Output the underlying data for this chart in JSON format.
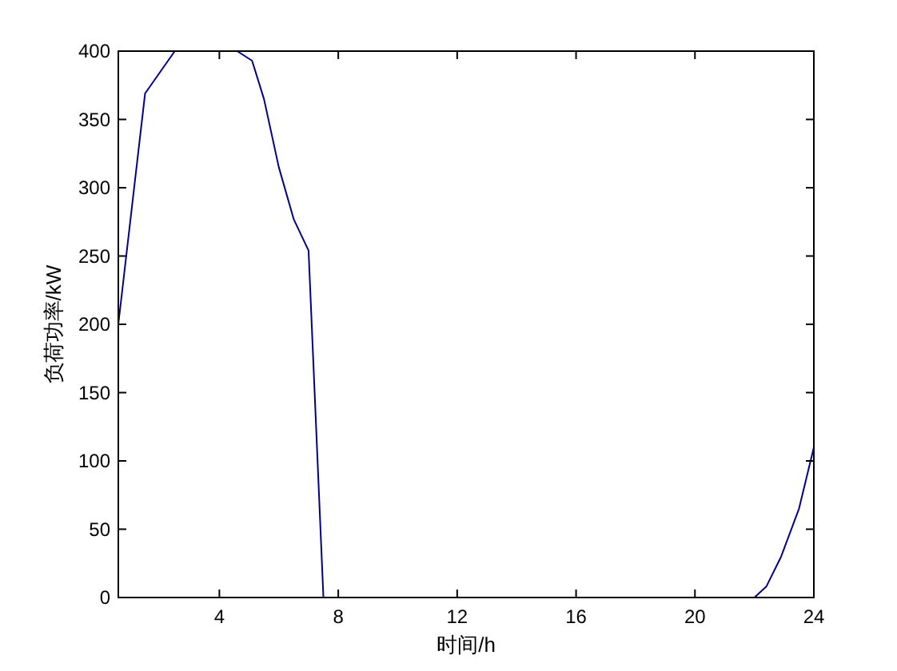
{
  "chart_data": {
    "type": "line",
    "xlabel": "时间/h",
    "ylabel": "负荷功率/kW",
    "x": [
      0.6,
      1.5,
      2.5,
      4.6,
      5.1,
      5.5,
      6,
      6.5,
      7,
      7.5,
      22,
      22.4,
      22.9,
      23.5,
      24
    ],
    "series": [
      {
        "color": "#00008b",
        "values": [
          200,
          369,
          400,
          400,
          393,
          365,
          315,
          277,
          254,
          0,
          0,
          8,
          30,
          65,
          110
        ]
      }
    ],
    "xlim": [
      0.6,
      24
    ],
    "xticks": [
      4,
      8,
      12,
      16,
      20,
      24
    ],
    "ylim": [
      0,
      400
    ],
    "yticks": [
      0,
      50,
      100,
      150,
      200,
      250,
      300,
      350,
      400
    ],
    "grid": false
  }
}
